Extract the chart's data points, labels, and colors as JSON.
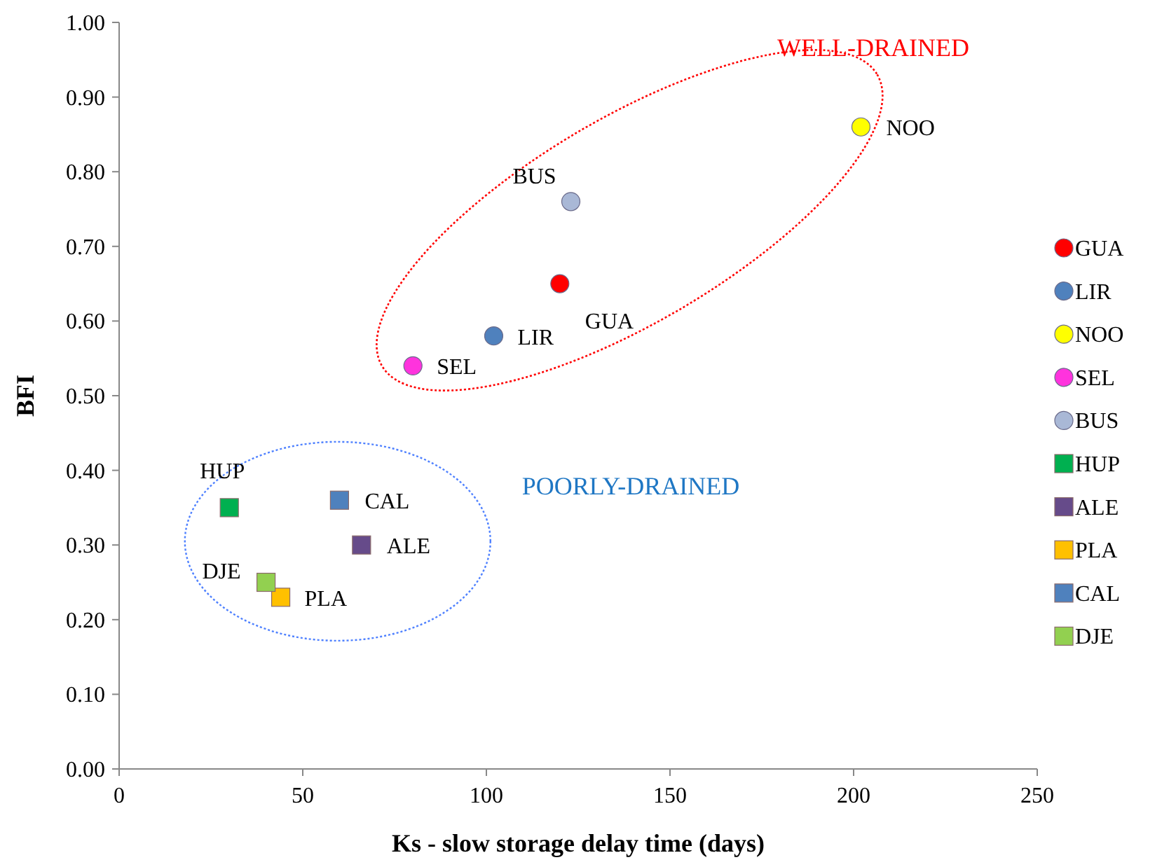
{
  "chart_data": {
    "type": "scatter",
    "xlabel": "Ks - slow storage delay time (days)",
    "ylabel": "BFI",
    "xlim": [
      0,
      250
    ],
    "xticks": [
      0,
      50,
      100,
      150,
      200,
      250
    ],
    "ylim": [
      0,
      1
    ],
    "yticks": [
      {
        "value": 0,
        "label": "0.00"
      },
      {
        "value": 0.1,
        "label": "0.10"
      },
      {
        "value": 0.2,
        "label": "0.20"
      },
      {
        "value": 0.3,
        "label": "0.30"
      },
      {
        "value": 0.4,
        "label": "0.40"
      },
      {
        "value": 0.5,
        "label": "0.50"
      },
      {
        "value": 0.6,
        "label": "0.60"
      },
      {
        "value": 0.7,
        "label": "0.70"
      },
      {
        "value": 0.8,
        "label": "0.80"
      },
      {
        "value": 0.9,
        "label": "0.90"
      },
      {
        "value": 1,
        "label": "1.00"
      }
    ],
    "grid": false,
    "legend": "right",
    "series": [
      {
        "name": "GUA",
        "color": "#ff0000",
        "marker": "circle",
        "x": [
          120
        ],
        "values": [
          0.65
        ]
      },
      {
        "name": "LIR",
        "color": "#4f81bd",
        "marker": "circle",
        "x": [
          102
        ],
        "values": [
          0.58
        ]
      },
      {
        "name": "NOO",
        "color": "#ffff00",
        "marker": "circle",
        "x": [
          202
        ],
        "values": [
          0.86
        ]
      },
      {
        "name": "SEL",
        "color": "#ff33dd",
        "marker": "circle",
        "x": [
          80
        ],
        "values": [
          0.54
        ]
      },
      {
        "name": "BUS",
        "color": "#a9b8d6",
        "marker": "circle",
        "x": [
          123
        ],
        "values": [
          0.76
        ]
      },
      {
        "name": "HUP",
        "color": "#00b050",
        "marker": "square",
        "x": [
          30
        ],
        "values": [
          0.35
        ]
      },
      {
        "name": "ALE",
        "color": "#664b8a",
        "marker": "square",
        "x": [
          66
        ],
        "values": [
          0.3
        ]
      },
      {
        "name": "PLA",
        "color": "#ffc000",
        "marker": "square",
        "x": [
          44
        ],
        "values": [
          0.23
        ]
      },
      {
        "name": "CAL",
        "color": "#4f81bd",
        "marker": "square",
        "x": [
          60
        ],
        "values": [
          0.36
        ]
      },
      {
        "name": "DJE",
        "color": "#92d050",
        "marker": "square",
        "x": [
          40
        ],
        "values": [
          0.25
        ]
      }
    ],
    "annotations": [
      "WELL-DRAINED",
      "POORLY-DRAINED"
    ]
  }
}
